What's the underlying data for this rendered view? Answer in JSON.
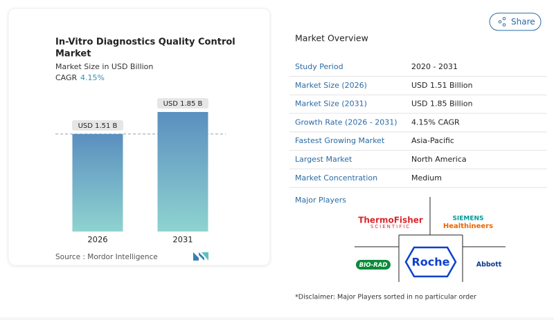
{
  "chart_data": {
    "type": "bar",
    "title": [
      "In-Vitro Diagnostics Quality Control",
      "Market"
    ],
    "subtitle": "Market Size in USD Billion",
    "cagr_label": "CAGR",
    "cagr_value": "4.15%",
    "categories": [
      "2026",
      "2031"
    ],
    "values": [
      1.51,
      1.85
    ],
    "value_labels": [
      "USD 1.51 B",
      "USD 1.85 B"
    ],
    "ylim": [
      0,
      2
    ],
    "colors": [
      "#5a8fbf",
      "#8fd3d0"
    ],
    "source": "Source :  Mordor Intelligence"
  },
  "share": "Share",
  "overview": {
    "title": "Market Overview",
    "rows": [
      [
        "Study Period",
        "2020 - 2031"
      ],
      [
        "Market Size (2026)",
        "USD 1.51 Billion"
      ],
      [
        "Market Size (2031)",
        "USD 1.85 Billion"
      ],
      [
        "Growth Rate (2026 - 2031)",
        "4.15% CAGR"
      ],
      [
        "Fastest Growing Market",
        "Asia-Pacific"
      ],
      [
        "Largest Market",
        "North America"
      ],
      [
        "Market Concentration",
        "Medium"
      ]
    ],
    "players_title": "Major Players",
    "players": [
      "ThermoFisher",
      "SCIENTIFIC",
      "SIEMENS",
      "Healthineers",
      "BIO-RAD",
      "Roche",
      "Abbott"
    ],
    "disclaimer": "*Disclaimer: Major Players sorted in no particular order"
  }
}
